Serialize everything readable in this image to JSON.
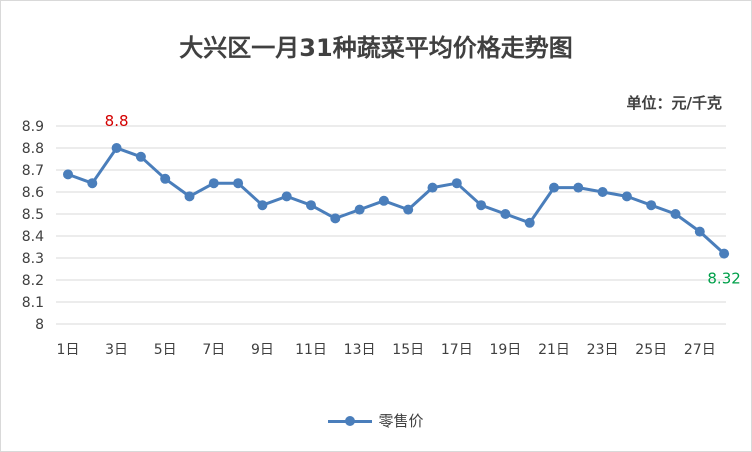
{
  "chart_data": {
    "type": "line",
    "title": "大兴区一月31种蔬菜平均价格走势图",
    "unit_label": "单位：元/千克",
    "xlabel": "",
    "ylabel": "",
    "ylim": [
      8,
      8.9
    ],
    "y_ticks": [
      "8",
      "8.1",
      "8.2",
      "8.3",
      "8.4",
      "8.5",
      "8.6",
      "8.7",
      "8.8",
      "8.9"
    ],
    "x_tick_labels": [
      "1日",
      "3日",
      "5日",
      "7日",
      "9日",
      "11日",
      "13日",
      "15日",
      "17日",
      "19日",
      "21日",
      "23日",
      "25日",
      "27日"
    ],
    "grid": true,
    "legend_position": "bottom",
    "series": [
      {
        "name": "零售价",
        "color": "#4a7ebb",
        "x": [
          1,
          2,
          3,
          4,
          5,
          6,
          7,
          8,
          9,
          10,
          11,
          12,
          13,
          14,
          15,
          16,
          17,
          18,
          19,
          20,
          21,
          22,
          23,
          24,
          25,
          26,
          27,
          28
        ],
        "values": [
          8.68,
          8.64,
          8.8,
          8.76,
          8.66,
          8.58,
          8.64,
          8.64,
          8.54,
          8.58,
          8.54,
          8.48,
          8.52,
          8.56,
          8.52,
          8.62,
          8.64,
          8.54,
          8.5,
          8.46,
          8.62,
          8.62,
          8.6,
          8.58,
          8.54,
          8.5,
          8.42,
          8.32
        ]
      }
    ],
    "annotations": [
      {
        "label": "8.8",
        "x": 3,
        "color": "#d40000"
      },
      {
        "label": "8.32",
        "x": 28,
        "color": "#00a04a"
      }
    ]
  }
}
